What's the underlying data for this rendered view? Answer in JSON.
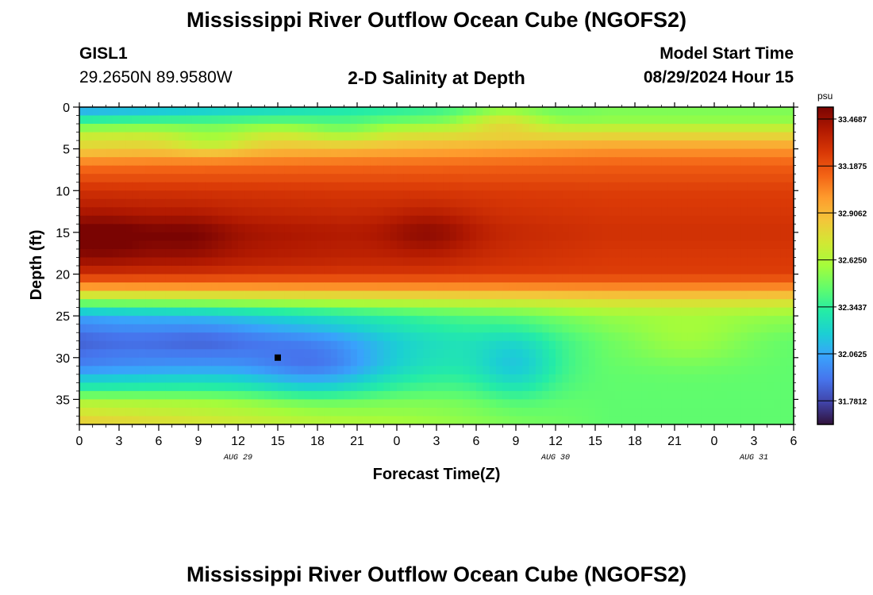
{
  "header": {
    "title": "Mississippi River Outflow Ocean Cube (NGOFS2)",
    "station_id": "GISL1",
    "station_coords": "29.2650N  89.9580W",
    "subtitle": "2-D Salinity at Depth",
    "model_start_label": "Model Start Time",
    "model_start_value": "08/29/2024 Hour 15"
  },
  "footer": {
    "title_repeat": "Mississippi River Outflow Ocean Cube (NGOFS2)"
  },
  "chart_data": {
    "type": "heatmap",
    "title": "2-D Salinity at Depth",
    "xlabel": "Forecast Time(Z)",
    "ylabel": "Depth (ft)",
    "x_hours": [
      0,
      3,
      6,
      9,
      12,
      15,
      18,
      21,
      24,
      27,
      30,
      33,
      36,
      39,
      42,
      45,
      48,
      51,
      54
    ],
    "x_tick_labels": [
      "0",
      "3",
      "6",
      "9",
      "12",
      "15",
      "18",
      "21",
      "0",
      "3",
      "6",
      "9",
      "12",
      "15",
      "18",
      "21",
      "0",
      "3",
      "6"
    ],
    "xlim": [
      0,
      54
    ],
    "date_labels": [
      {
        "hour": 12,
        "label": "AUG 29"
      },
      {
        "hour": 36,
        "label": "AUG 30"
      },
      {
        "hour": 51,
        "label": "AUG 31"
      }
    ],
    "y_ticks": [
      0,
      5,
      10,
      15,
      20,
      25,
      30,
      35
    ],
    "ylim": [
      0,
      38
    ],
    "y_inverted": true,
    "colorbar": {
      "unit": "psu",
      "min": 31.64,
      "max": 33.54,
      "tick_values": [
        33.4687,
        33.1875,
        32.9062,
        32.625,
        32.3437,
        32.0625,
        31.7812
      ],
      "tick_labels": [
        "33.4687",
        "33.1875",
        "32.9062",
        "32.6250",
        "32.3437",
        "32.0625",
        "31.7812"
      ],
      "colors": [
        "#30123b",
        "#4145ab",
        "#4675ed",
        "#39a2fc",
        "#1bcfd4",
        "#24eca6",
        "#61fc6c",
        "#a4fc3b",
        "#d1e834",
        "#f3c63a",
        "#fe9b2d",
        "#f36315",
        "#d93806",
        "#b11901",
        "#7a0402"
      ]
    },
    "depth_profile_start": [
      {
        "depth": 0,
        "value": 32.02
      },
      {
        "depth": 1,
        "value": 32.2
      },
      {
        "depth": 2,
        "value": 32.45
      },
      {
        "depth": 3.5,
        "value": 32.7
      },
      {
        "depth": 5,
        "value": 32.82
      },
      {
        "depth": 7,
        "value": 33.1
      },
      {
        "depth": 10,
        "value": 33.3
      },
      {
        "depth": 13,
        "value": 33.4
      },
      {
        "depth": 15,
        "value": 33.5
      },
      {
        "depth": 18,
        "value": 33.45
      },
      {
        "depth": 20,
        "value": 33.3
      },
      {
        "depth": 21.5,
        "value": 33.0
      },
      {
        "depth": 23,
        "value": 32.6
      },
      {
        "depth": 25,
        "value": 32.05
      },
      {
        "depth": 28,
        "value": 31.85
      },
      {
        "depth": 31,
        "value": 31.95
      },
      {
        "depth": 33.5,
        "value": 32.3
      },
      {
        "depth": 35.5,
        "value": 32.65
      },
      {
        "depth": 38,
        "value": 32.85
      }
    ],
    "depth_profile_end": [
      {
        "depth": 0,
        "value": 32.5
      },
      {
        "depth": 1.5,
        "value": 32.55
      },
      {
        "depth": 3,
        "value": 32.75
      },
      {
        "depth": 5,
        "value": 33.0
      },
      {
        "depth": 7,
        "value": 33.15
      },
      {
        "depth": 10,
        "value": 33.25
      },
      {
        "depth": 15,
        "value": 33.3
      },
      {
        "depth": 20,
        "value": 33.25
      },
      {
        "depth": 21.5,
        "value": 33.05
      },
      {
        "depth": 23,
        "value": 32.8
      },
      {
        "depth": 25,
        "value": 32.55
      },
      {
        "depth": 28,
        "value": 32.45
      },
      {
        "depth": 38,
        "value": 32.45
      }
    ],
    "features": [
      {
        "hour": 2,
        "depth": 15.5,
        "sx": 4,
        "sy": 3,
        "amp": 0.1
      },
      {
        "hour": 8.5,
        "depth": 15.5,
        "sx": 3,
        "sy": 3,
        "amp": 0.08
      },
      {
        "hour": 26.5,
        "depth": 15,
        "sx": 3.5,
        "sy": 3,
        "amp": 0.12
      },
      {
        "hour": 18,
        "depth": 31,
        "sx": 5,
        "sy": 4,
        "amp": -0.25
      },
      {
        "hour": 10,
        "depth": 28,
        "sx": 5,
        "sy": 3,
        "amp": -0.12
      },
      {
        "hour": 33,
        "depth": 31,
        "sx": 3,
        "sy": 4,
        "amp": -0.2
      },
      {
        "hour": 46,
        "depth": 28,
        "sx": 5,
        "sy": 3,
        "amp": 0.12
      },
      {
        "hour": 32,
        "depth": 1.5,
        "sx": 3,
        "sy": 1.5,
        "amp": 0.22
      },
      {
        "hour": 20,
        "depth": 3,
        "sx": 3,
        "sy": 1.5,
        "amp": -0.12
      },
      {
        "hour": 10,
        "depth": 4,
        "sx": 3,
        "sy": 1.5,
        "amp": -0.15
      }
    ],
    "marker": {
      "hour": 15,
      "depth": 30,
      "color": "#000000"
    }
  }
}
